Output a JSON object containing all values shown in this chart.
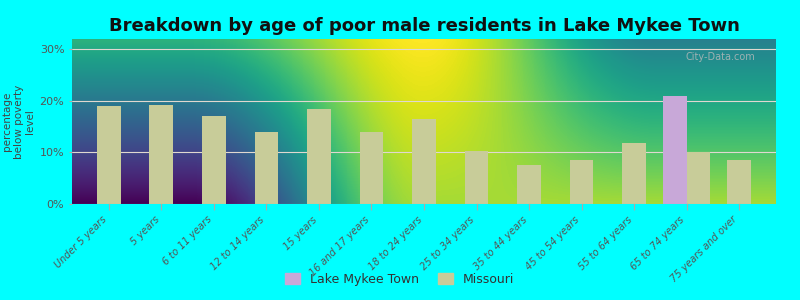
{
  "title": "Breakdown by age of poor male residents in Lake Mykee Town",
  "ylabel": "percentage\nbelow poverty\nlevel",
  "categories": [
    "Under 5 years",
    "5 years",
    "6 to 11 years",
    "12 to 14 years",
    "15 years",
    "16 and 17 years",
    "18 to 24 years",
    "25 to 34 years",
    "35 to 44 years",
    "45 to 54 years",
    "55 to 64 years",
    "65 to 74 years",
    "75 years and over"
  ],
  "missouri_values": [
    19.0,
    19.2,
    17.0,
    14.0,
    18.5,
    14.0,
    16.5,
    10.2,
    7.5,
    8.5,
    11.8,
    10.0,
    8.5
  ],
  "lake_mykee_values": [
    0,
    0,
    0,
    0,
    0,
    0,
    0,
    0,
    0,
    0,
    0,
    21.0,
    0
  ],
  "missouri_color": "#c8cc99",
  "lake_mykee_color": "#c8a8d8",
  "background_color": "#00ffff",
  "plot_bg_color_top": "#e8f5e0",
  "plot_bg_color_bottom": "#d0f0f0",
  "ylim": [
    0,
    32
  ],
  "yticks": [
    0,
    10,
    20,
    30
  ],
  "ytick_labels": [
    "0%",
    "10%",
    "20%",
    "30%"
  ],
  "bar_width": 0.45,
  "title_fontsize": 13,
  "legend_labels": [
    "Lake Mykee Town",
    "Missouri"
  ],
  "grid_color": "#e0d8d0",
  "watermark": "City-Data.com"
}
